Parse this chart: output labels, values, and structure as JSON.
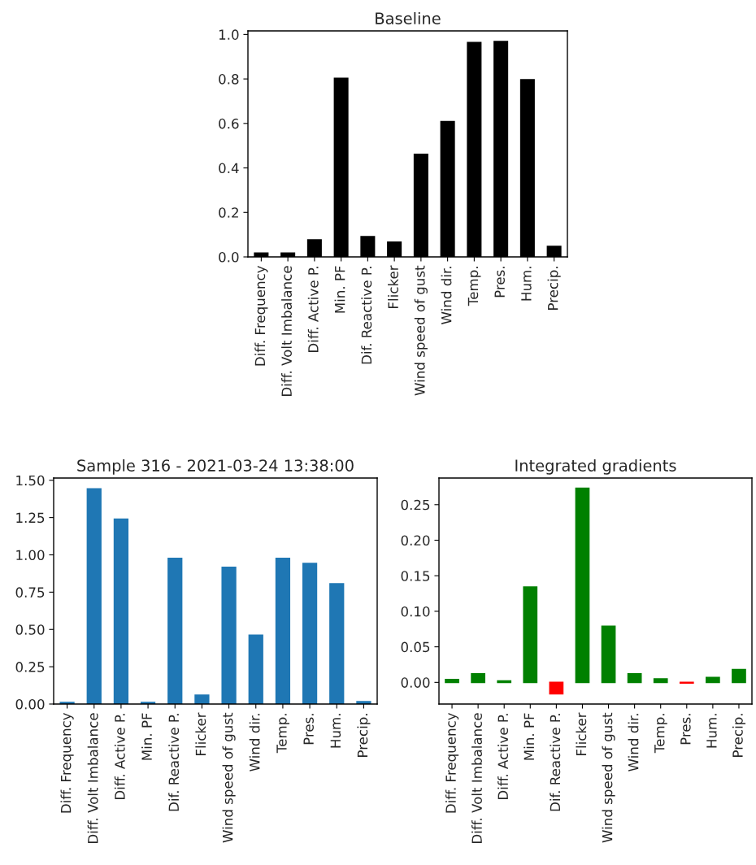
{
  "chart_data": [
    {
      "type": "bar",
      "title": "Baseline",
      "categories": [
        "Diff. Frequency",
        "Diff. Volt Imbalance",
        "Diff. Active P.",
        "Min. PF",
        "Dif. Reactive P.",
        "Flicker",
        "Wind speed of gust",
        "Wind dir.",
        "Temp.",
        "Pres.",
        "Hum.",
        "Precip."
      ],
      "values": [
        0.017,
        0.017,
        0.076,
        0.803,
        0.091,
        0.066,
        0.461,
        0.608,
        0.964,
        0.968,
        0.796,
        0.047
      ],
      "color": "#000000",
      "ylim": [
        0,
        1.016
      ],
      "yticks": [
        {
          "value": 0,
          "label": "0.0"
        },
        {
          "value": 0.2,
          "label": "0.2"
        },
        {
          "value": 0.4,
          "label": "0.4"
        },
        {
          "value": 0.6,
          "label": "0.6"
        },
        {
          "value": 0.8,
          "label": "0.8"
        },
        {
          "value": 1.0,
          "label": "1.0"
        }
      ],
      "grid": false
    },
    {
      "type": "bar",
      "title": "Sample 316 - 2021-03-24 13:38:00",
      "categories": [
        "Diff. Frequency",
        "Diff. Volt Imbalance",
        "Diff. Active P.",
        "Min. PF",
        "Dif. Reactive P.",
        "Flicker",
        "Wind speed of gust",
        "Wind dir.",
        "Temp.",
        "Pres.",
        "Hum.",
        "Precip."
      ],
      "values": [
        0.011,
        1.443,
        1.24,
        0.011,
        0.976,
        0.06,
        0.916,
        0.461,
        0.976,
        0.943,
        0.806,
        0.016
      ],
      "color": "#1f77b4",
      "ylim": [
        0,
        1.515
      ],
      "yticks": [
        {
          "value": 0,
          "label": "0.00"
        },
        {
          "value": 0.25,
          "label": "0.25"
        },
        {
          "value": 0.5,
          "label": "0.50"
        },
        {
          "value": 0.75,
          "label": "0.75"
        },
        {
          "value": 1.0,
          "label": "1.00"
        },
        {
          "value": 1.25,
          "label": "1.25"
        },
        {
          "value": 1.5,
          "label": "1.50"
        }
      ],
      "grid": false
    },
    {
      "type": "bar",
      "title": "Integrated gradients",
      "categories": [
        "Diff. Frequency",
        "Diff. Volt Imbalance",
        "Diff. Active P.",
        "Min. PF",
        "Dif. Reactive P.",
        "Flicker",
        "Wind speed of gust",
        "Wind dir.",
        "Temp.",
        "Pres.",
        "Hum.",
        "Precip."
      ],
      "values": [
        0.004,
        0.012,
        0.002,
        0.134,
        -0.016,
        0.273,
        0.079,
        0.012,
        0.005,
        -0.001,
        0.007,
        0.018
      ],
      "colors": [
        "#008000",
        "#008000",
        "#008000",
        "#008000",
        "#ff0000",
        "#008000",
        "#008000",
        "#008000",
        "#008000",
        "#ff0000",
        "#008000",
        "#008000"
      ],
      "ylim": [
        -0.0305,
        0.2875
      ],
      "yticks": [
        {
          "value": 0,
          "label": "0.00"
        },
        {
          "value": 0.05,
          "label": "0.05"
        },
        {
          "value": 0.1,
          "label": "0.10"
        },
        {
          "value": 0.15,
          "label": "0.15"
        },
        {
          "value": 0.2,
          "label": "0.20"
        },
        {
          "value": 0.25,
          "label": "0.25"
        }
      ],
      "grid": false
    }
  ]
}
